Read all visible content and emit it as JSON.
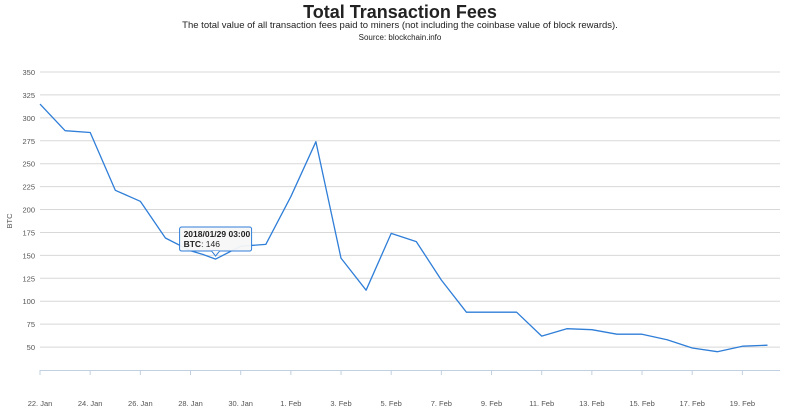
{
  "chart_data": {
    "type": "line",
    "title": "Total Transaction Fees",
    "subtitle": "The total value of all transaction fees paid to miners (not including the coinbase value of block rewards).",
    "source": "Source: blockchain.info",
    "xlabel": "",
    "ylabel": "BTC",
    "ylim": [
      25,
      350
    ],
    "yticks": [
      50,
      75,
      100,
      125,
      150,
      175,
      200,
      225,
      250,
      275,
      300,
      325,
      350
    ],
    "x_tick_labels": [
      "22. Jan",
      "24. Jan",
      "26. Jan",
      "28. Jan",
      "30. Jan",
      "1. Feb",
      "3. Feb",
      "5. Feb",
      "7. Feb",
      "9. Feb",
      "11. Feb",
      "13. Feb",
      "15. Feb",
      "17. Feb",
      "19. Feb"
    ],
    "x_start_day": 22,
    "x_end_day": 51.5,
    "x_day_offsets": [
      22,
      23,
      24,
      25,
      26,
      27,
      28,
      28.5,
      29,
      30,
      31,
      32,
      33,
      34,
      35,
      36,
      37,
      38,
      39,
      40,
      41,
      42,
      43,
      44,
      45,
      46,
      47,
      48,
      49,
      50,
      51
    ],
    "series": [
      {
        "name": "BTC",
        "color": "#2f7ed8",
        "values": [
          315,
          286,
          284,
          221,
          209,
          169,
          155,
          151,
          146,
          160,
          162,
          214,
          274,
          147,
          112,
          174,
          165,
          123,
          88,
          88,
          88,
          62,
          70,
          69,
          64,
          64,
          58,
          49,
          45,
          51,
          52
        ]
      }
    ],
    "tooltip": {
      "date": "2018/01/29 03:00",
      "label": "BTC",
      "value_text": "146"
    },
    "grid": true
  }
}
